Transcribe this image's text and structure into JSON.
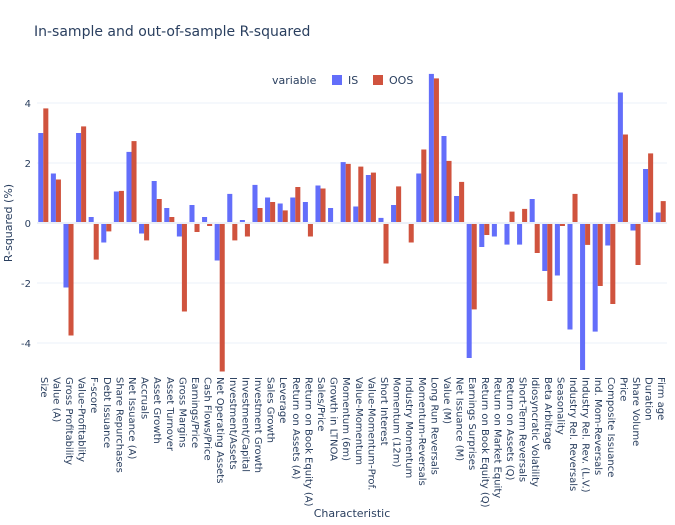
{
  "chart_data": {
    "type": "bar",
    "title": "In-sample and out-of-sample R-squared",
    "xlabel": "Characteristic",
    "ylabel": "R-squared (%)",
    "ylim": [
      -5.0,
      5.0
    ],
    "yticks": [
      -4,
      -2,
      0,
      2,
      4
    ],
    "grid": true,
    "legend": {
      "title": "variable",
      "position": "top-center"
    },
    "categories": [
      "Size",
      "Value (A)",
      "Gross Profitability",
      "Value-Profitablity",
      "F-score",
      "Debt Issuance",
      "Share Repurchases",
      "Net Issuance (A)",
      "Accruals",
      "Asset Growth",
      "Asset Turnover",
      "Gross Margins",
      "Earnings/Price",
      "Cash Flows/Price",
      "Net Operating Assets",
      "Investment/Assets",
      "Investment/Capital",
      "Investment Growth",
      "Sales Growth",
      "Leverage",
      "Return on Assets (A)",
      "Return on Book Equity (A)",
      "Sales/Price",
      "Growth in LTNOA",
      "Momentum (6m)",
      "Value-Momentum",
      "Value-Momentum-Prof.",
      "Short Interest",
      "Momentum (12m)",
      "Industry Momentum",
      "Momentum-Reversals",
      "Long Run Reversals",
      "Value (M)",
      "Net Issuance (M)",
      "Earnings Surprises",
      "Return on Book Equity (Q)",
      "Return on Market Equity",
      "Return on Assets (Q)",
      "Short-Term Reversals",
      "Idiosyncratic Volatility",
      "Beta Arbitrage",
      "Seasonality",
      "Industry Rel. Reversals",
      "Industry Rel. Rev. (L.V.)",
      "Ind. Mom-Reversals",
      "Composite Issuance",
      "Price",
      "Share Volume",
      "Duration",
      "Firm age"
    ],
    "series": [
      {
        "name": "IS",
        "color": "#636efa",
        "values": [
          3.0,
          1.65,
          -2.15,
          3.0,
          0.2,
          -0.65,
          1.05,
          2.37,
          -0.35,
          1.4,
          0.5,
          -0.45,
          0.6,
          0.2,
          -1.25,
          0.97,
          0.1,
          1.27,
          0.85,
          0.65,
          0.85,
          0.7,
          1.25,
          0.5,
          2.03,
          0.55,
          1.6,
          0.17,
          0.6,
          0.0,
          1.65,
          4.97,
          2.9,
          0.9,
          -4.5,
          -0.8,
          -0.45,
          -0.72,
          -0.72,
          0.8,
          -1.6,
          -1.75,
          -3.55,
          -4.9,
          -3.62,
          -0.75,
          4.35,
          -0.25,
          1.8,
          0.35
        ]
      },
      {
        "name": "OOS",
        "color": "#d0533e",
        "values": [
          3.82,
          1.45,
          -3.75,
          3.22,
          -1.22,
          -0.28,
          1.07,
          2.73,
          -0.58,
          0.8,
          0.2,
          -2.95,
          -0.3,
          -0.1,
          -4.95,
          -0.58,
          -0.45,
          0.5,
          0.7,
          0.42,
          1.2,
          -0.45,
          1.15,
          0.0,
          1.97,
          1.88,
          1.68,
          -1.35,
          1.22,
          -0.65,
          2.45,
          4.82,
          2.07,
          1.37,
          -2.88,
          -0.4,
          0.0,
          0.38,
          0.47,
          -1.0,
          -2.6,
          -0.1,
          0.97,
          -0.73,
          -2.1,
          -2.7,
          2.95,
          -1.4,
          2.32,
          0.73
        ]
      }
    ]
  }
}
